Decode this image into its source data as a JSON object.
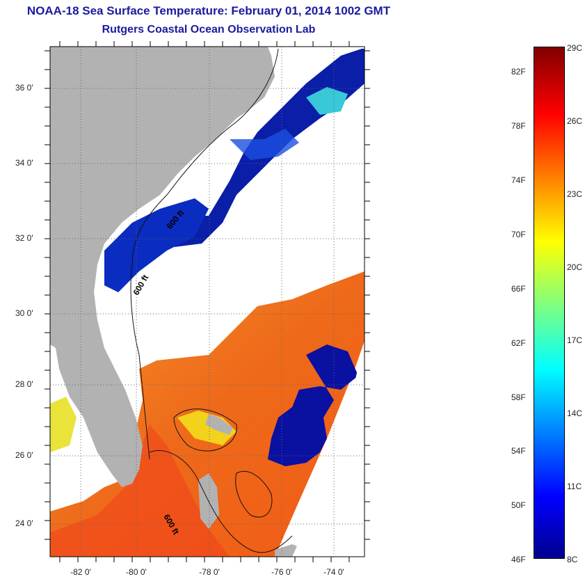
{
  "header": {
    "title": "NOAA-18 Sea Surface Temperature:  February 01, 2014 1002 GMT",
    "subtitle": "Rutgers Coastal Ocean Observation Lab"
  },
  "map": {
    "lat_labels": [
      "36 0'",
      "34 0'",
      "32 0'",
      "30 0'",
      "28 0'",
      "26 0'",
      "24 0'"
    ],
    "lon_labels": [
      "-82 0'",
      "-80 0'",
      "-78 0'",
      "-76 0'",
      "-74 0'"
    ],
    "depth_labels": [
      "600 ft",
      "600 ft",
      "600 ft"
    ],
    "colors": {
      "land": "#b2b2b2",
      "cloud": "#ffffff",
      "cold": "#0a1ea8",
      "warm": "#f07a1e"
    }
  },
  "colorbar": {
    "fahrenheit_labels": [
      "82F",
      "78F",
      "74F",
      "70F",
      "66F",
      "62F",
      "58F",
      "54F",
      "50F",
      "46F"
    ],
    "celsius_labels": [
      "29C",
      "26C",
      "23C",
      "20C",
      "17C",
      "14C",
      "11C",
      "8C"
    ],
    "range_celsius": [
      8,
      29
    ],
    "colormap": "jet"
  }
}
